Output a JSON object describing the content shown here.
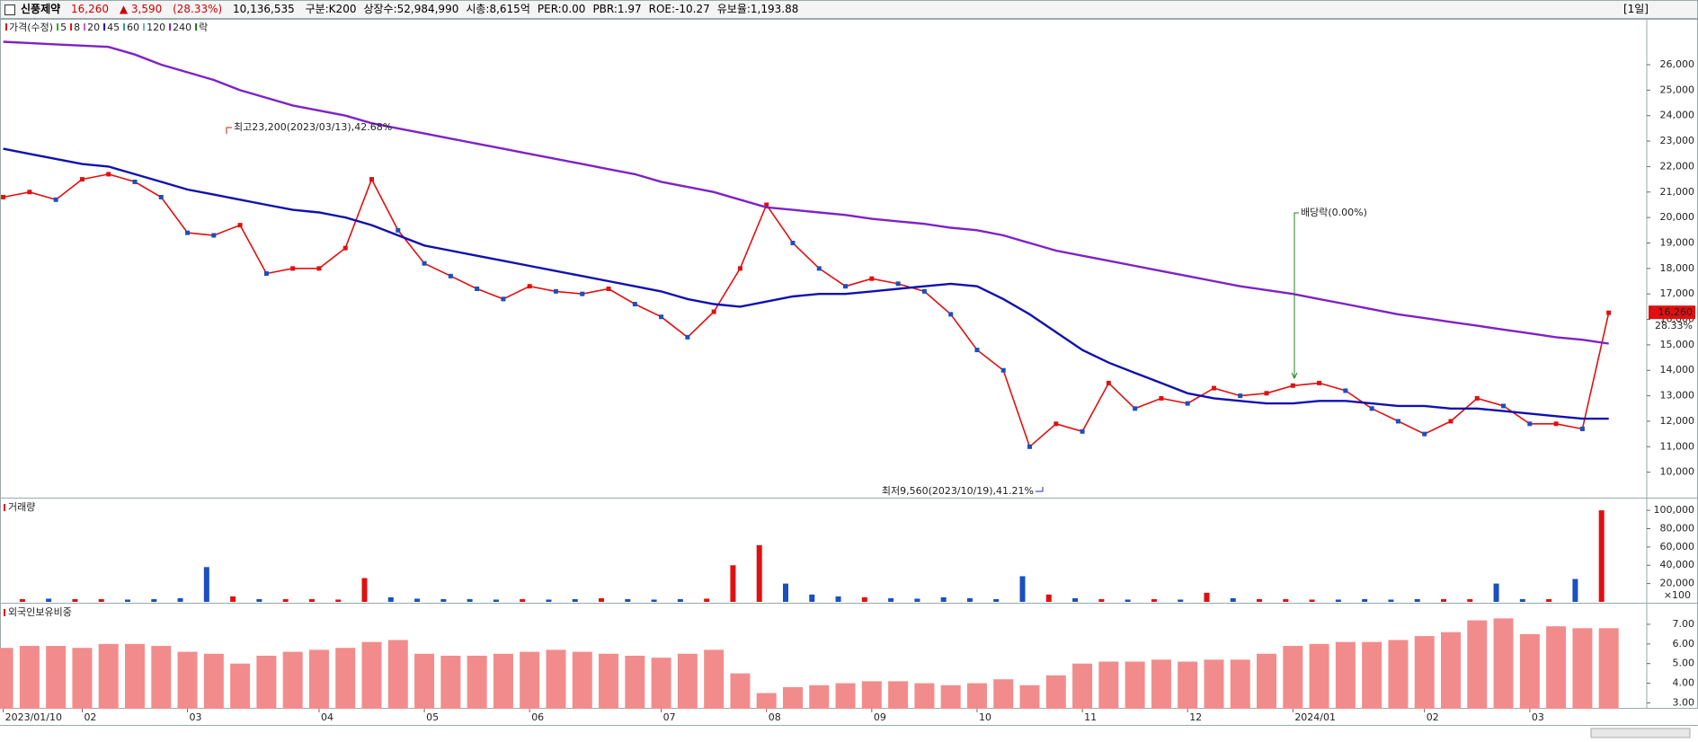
{
  "header": {
    "name": "신풍제약",
    "price": "16,260",
    "change": "▲ 3,590",
    "change_pct": "(28.33%)",
    "volume": "10,136,535",
    "items": [
      "구분:K200",
      "상장수:52,984,990",
      "시총:8,615억",
      "PER:0.00",
      "PBR:1.97",
      "ROE:-10.27",
      "유보율:1,193.88"
    ],
    "period": "[1일]"
  },
  "chart_data": [
    {
      "type": "line",
      "title": "가격(수정)",
      "categories": [
        "2023/01/10",
        null,
        null,
        "02",
        null,
        null,
        null,
        "03",
        null,
        null,
        null,
        null,
        "04",
        null,
        null,
        null,
        "05",
        null,
        null,
        null,
        "06",
        null,
        null,
        null,
        null,
        "07",
        null,
        null,
        null,
        "08",
        null,
        null,
        null,
        "09",
        null,
        null,
        null,
        "10",
        null,
        null,
        null,
        "11",
        null,
        null,
        null,
        "12",
        null,
        null,
        null,
        "2024/01",
        null,
        null,
        null,
        null,
        "02",
        null,
        null,
        null,
        "03",
        null,
        null,
        null
      ],
      "series": [
        {
          "name": "가격(수정)",
          "color": "#e01010",
          "values": [
            20800,
            21000,
            20700,
            21500,
            21700,
            21400,
            20800,
            19400,
            19300,
            19700,
            17800,
            18000,
            18000,
            18800,
            21500,
            19500,
            18200,
            17700,
            17200,
            16800,
            17300,
            17100,
            17000,
            17200,
            16600,
            16100,
            15300,
            16300,
            18000,
            20500,
            19000,
            18000,
            17300,
            17600,
            17400,
            17100,
            16200,
            14800,
            14000,
            11000,
            11900,
            11600,
            13500,
            12500,
            12900,
            12700,
            13300,
            13000,
            13100,
            13400,
            13500,
            13200,
            12500,
            12000,
            11500,
            12000,
            12900,
            12600,
            11900,
            11900,
            11700,
            16260
          ]
        },
        {
          "name": "45",
          "color": "#1010b0",
          "values": [
            22700,
            22500,
            22300,
            22100,
            22000,
            21700,
            21400,
            21100,
            20900,
            20700,
            20500,
            20300,
            20200,
            20000,
            19700,
            19300,
            18900,
            18700,
            18500,
            18300,
            18100,
            17900,
            17700,
            17500,
            17300,
            17100,
            16800,
            16600,
            16500,
            16700,
            16900,
            17000,
            17000,
            17100,
            17200,
            17300,
            17400,
            17300,
            16800,
            16200,
            15500,
            14800,
            14300,
            13900,
            13500,
            13100,
            12900,
            12800,
            12700,
            12700,
            12800,
            12800,
            12700,
            12600,
            12600,
            12500,
            12500,
            12400,
            12300,
            12200,
            12100,
            12100
          ]
        },
        {
          "name": "240",
          "color": "#7e22c8",
          "values": [
            26900,
            26850,
            26800,
            26750,
            26700,
            26400,
            26000,
            25700,
            25400,
            25000,
            24700,
            24400,
            24200,
            24000,
            23700,
            23500,
            23300,
            23100,
            22900,
            22700,
            22500,
            22300,
            22100,
            21900,
            21700,
            21400,
            21200,
            21000,
            20700,
            20400,
            20300,
            20200,
            20100,
            19950,
            19850,
            19750,
            19600,
            19500,
            19300,
            19000,
            18700,
            18500,
            18300,
            18100,
            17900,
            17700,
            17500,
            17300,
            17150,
            17000,
            16800,
            16600,
            16400,
            16200,
            16050,
            15900,
            15750,
            15600,
            15450,
            15300,
            15200,
            15050
          ]
        }
      ],
      "legend_extra": [
        {
          "name": "5",
          "color": "#20b020"
        },
        {
          "name": "8",
          "color": "#e01010"
        },
        {
          "name": "20",
          "color": "#c060c0"
        },
        {
          "name": "60",
          "color": "#2a9a8a"
        },
        {
          "name": "120",
          "color": "#6ab0c0"
        },
        {
          "name": "락",
          "color": "#108010"
        }
      ],
      "annotations": {
        "high": "최고23,200(2023/03/13),42.68%",
        "low": "최저9,560(2023/10/19),41.21%",
        "dividend": "배당락(0.00%)",
        "price_tag": "16,260",
        "change_tag": "28.33%"
      },
      "ylim": [
        9000,
        27800
      ],
      "yticks": [
        {
          "value": 10000,
          "label": "10,000"
        },
        {
          "value": 11000,
          "label": "11,000"
        },
        {
          "value": 12000,
          "label": "12,000"
        },
        {
          "value": 13000,
          "label": "13,000"
        },
        {
          "value": 14000,
          "label": "14,000"
        },
        {
          "value": 15000,
          "label": "15,000"
        },
        {
          "value": 16000,
          "label": "16,000"
        },
        {
          "value": 17000,
          "label": "17,000"
        },
        {
          "value": 18000,
          "label": "18,000"
        },
        {
          "value": 19000,
          "label": "19,000"
        },
        {
          "value": 20000,
          "label": "20,000"
        },
        {
          "value": 21000,
          "label": "21,000"
        },
        {
          "value": 22000,
          "label": "22,000"
        },
        {
          "value": 23000,
          "label": "23,000"
        },
        {
          "value": 24000,
          "label": "24,000"
        },
        {
          "value": 25000,
          "label": "25,000"
        },
        {
          "value": 26000,
          "label": "26,000"
        }
      ]
    },
    {
      "type": "bar",
      "title": "거래량",
      "unit": "×100",
      "values": [
        4000,
        3000,
        3500,
        3000,
        3000,
        2500,
        3000,
        4000,
        38000,
        6000,
        3000,
        3000,
        3000,
        2500,
        26000,
        5000,
        3500,
        3000,
        3000,
        2500,
        3000,
        2500,
        3000,
        4000,
        3000,
        2500,
        3000,
        3500,
        40000,
        62000,
        20000,
        8000,
        6000,
        5000,
        4000,
        3500,
        5000,
        4000,
        3000,
        28000,
        8000,
        4000,
        3000,
        2500,
        3000,
        2500,
        10000,
        4000,
        3000,
        3000,
        2500,
        2500,
        3000,
        2500,
        3000,
        3000,
        3000,
        20000,
        3000,
        3000,
        25000,
        100000
      ],
      "colors": {
        "up": "#e01010",
        "down": "#1a50c0"
      },
      "ylim": [
        0,
        106000
      ],
      "yticks": [
        {
          "value": 20000,
          "label": "20,000"
        },
        {
          "value": 40000,
          "label": "40,000"
        },
        {
          "value": 60000,
          "label": "60,000"
        },
        {
          "value": 80000,
          "label": "80,000"
        },
        {
          "value": 100000,
          "label": "100,000"
        }
      ]
    },
    {
      "type": "bar",
      "title": "외국인보유비중",
      "color": "#f28c8c",
      "values": [
        5.8,
        5.9,
        5.9,
        5.8,
        6.0,
        6.0,
        5.9,
        5.6,
        5.5,
        5.0,
        5.4,
        5.6,
        5.7,
        5.8,
        6.1,
        6.2,
        5.5,
        5.4,
        5.4,
        5.5,
        5.6,
        5.7,
        5.6,
        5.5,
        5.4,
        5.3,
        5.5,
        5.7,
        4.5,
        3.5,
        3.8,
        3.9,
        4.0,
        4.1,
        4.1,
        4.0,
        3.9,
        4.0,
        4.2,
        3.9,
        4.4,
        5.0,
        5.1,
        5.1,
        5.2,
        5.1,
        5.2,
        5.2,
        5.5,
        5.9,
        6.0,
        6.1,
        6.1,
        6.2,
        6.4,
        6.6,
        7.2,
        7.3,
        6.5,
        6.9,
        6.8,
        6.8
      ],
      "ylim": [
        2.7,
        8.05
      ],
      "yticks": [
        {
          "value": 3,
          "label": "3.00"
        },
        {
          "value": 4,
          "label": "4.00"
        },
        {
          "value": 5,
          "label": "5.00"
        },
        {
          "value": 6,
          "label": "6.00"
        },
        {
          "value": 7,
          "label": "7.00"
        }
      ]
    }
  ]
}
